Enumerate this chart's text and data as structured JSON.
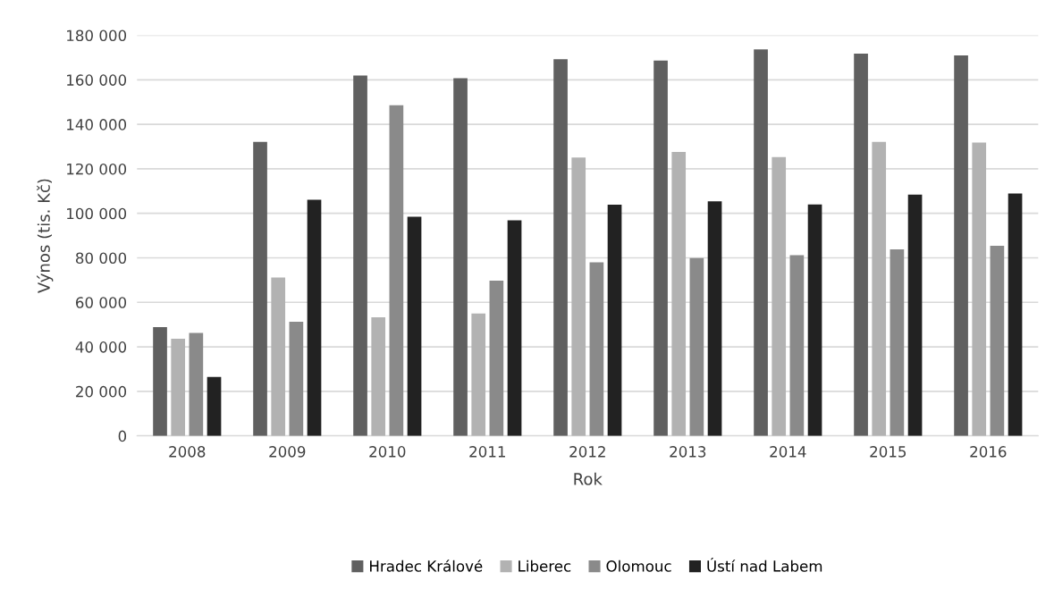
{
  "chart_data": {
    "type": "bar",
    "xlabel": "Rok",
    "ylabel": "Výnos (tis. Kč)",
    "categories": [
      "2008",
      "2009",
      "2010",
      "2011",
      "2012",
      "2013",
      "2014",
      "2015",
      "2016"
    ],
    "series": [
      {
        "name": "Hradec Králové",
        "color": "#606060",
        "values": [
          48900,
          132100,
          161900,
          160700,
          169300,
          168700,
          173700,
          171800,
          171000
        ]
      },
      {
        "name": "Liberec",
        "color": "#b2b2b2",
        "values": [
          43600,
          71200,
          53300,
          55000,
          125100,
          127600,
          125300,
          132100,
          131800
        ]
      },
      {
        "name": "Olomouc",
        "color": "#8a8a8a",
        "values": [
          46300,
          51300,
          148600,
          69800,
          78000,
          79900,
          81200,
          83800,
          85400
        ]
      },
      {
        "name": "Ústí nad Labem",
        "color": "#222222",
        "values": [
          26500,
          106100,
          98500,
          96900,
          103900,
          105400,
          104000,
          108400,
          108900
        ]
      }
    ],
    "ylim": [
      0,
      180000
    ],
    "yticks": [
      0,
      {
        "value": 20000,
        "label": "20 000"
      },
      {
        "value": 40000,
        "label": "40 000"
      },
      {
        "value": 60000,
        "label": "60 000"
      },
      {
        "value": 80000,
        "label": "80 000"
      },
      {
        "value": 100000,
        "label": "100 000"
      },
      {
        "value": 120000,
        "label": "120 000"
      },
      {
        "value": 140000,
        "label": "140 000"
      },
      {
        "value": 160000,
        "label": "160 000"
      },
      {
        "value": 180000,
        "label": "180 000"
      }
    ],
    "grid": "y",
    "legend": "bottom"
  }
}
